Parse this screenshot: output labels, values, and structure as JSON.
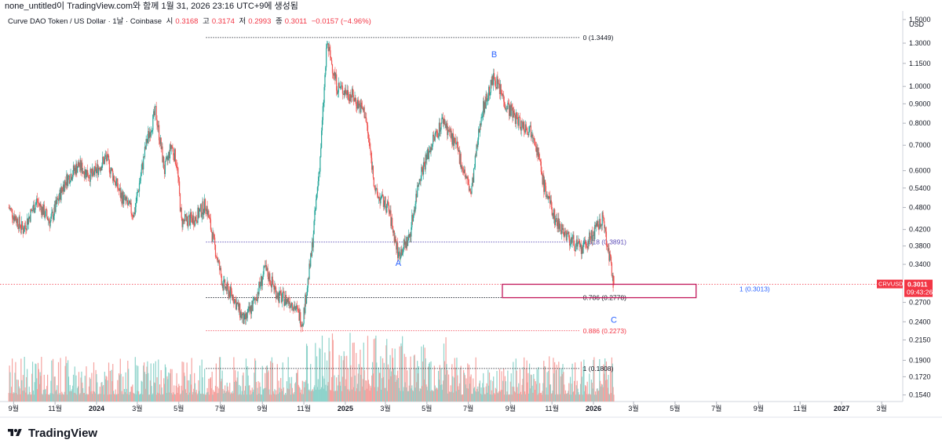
{
  "header": {
    "snapshot_text": "none_untitled이 TradingView.com와 함께 1월 31, 2026 23:16 UTC+9에 생성됨"
  },
  "legend": {
    "symbol": "Curve DAO Token / US Dollar · 1날 · Coinbase",
    "open_label": "시",
    "open_value": "0.3168",
    "high_label": "고",
    "high_value": "0.3174",
    "low_label": "저",
    "low_value": "0.2993",
    "close_label": "종",
    "close_value": "0.3011",
    "change": "−0.0157 (−4.96%)"
  },
  "footer": {
    "brand": "TradingView"
  },
  "colors": {
    "up": "#26a69a",
    "down": "#ef5350",
    "vol_up": "#8fd3cb",
    "vol_down": "#f5a3a0",
    "fib_top": "#131722",
    "fib_618": "#5b4bb7",
    "fib_1": "#2962ff",
    "fib_886": "#f23645",
    "price_tag": "#f23645",
    "box": "#c2185b",
    "wave_label": "#2962ff"
  },
  "chart_data": {
    "type": "candlestick",
    "symbol": "CRVUSD",
    "currency": "USD",
    "scale": "log",
    "ylim": [
      0.148,
      1.58
    ],
    "y_ticks": [
      "1.5000",
      "1.3000",
      "1.1500",
      "1.0000",
      "0.9000",
      "0.8000",
      "0.7000",
      "0.6000",
      "0.5400",
      "0.4800",
      "0.4200",
      "0.3800",
      "0.3400",
      "0.2700",
      "0.2400",
      "0.2150",
      "0.1900",
      "0.1720",
      "0.1540"
    ],
    "x_ticks": [
      {
        "label": "9월",
        "date": "2023-09-01"
      },
      {
        "label": "11월",
        "date": "2023-11-01"
      },
      {
        "label": "2024",
        "date": "2024-01-01",
        "bold": true
      },
      {
        "label": "3월",
        "date": "2024-03-01"
      },
      {
        "label": "5월",
        "date": "2024-05-01"
      },
      {
        "label": "7월",
        "date": "2024-07-01"
      },
      {
        "label": "9월",
        "date": "2024-09-01"
      },
      {
        "label": "11월",
        "date": "2024-11-01"
      },
      {
        "label": "2025",
        "date": "2025-01-01",
        "bold": true
      },
      {
        "label": "3월",
        "date": "2025-03-01"
      },
      {
        "label": "5월",
        "date": "2025-05-01"
      },
      {
        "label": "7월",
        "date": "2025-07-01"
      },
      {
        "label": "9월",
        "date": "2025-09-01"
      },
      {
        "label": "11월",
        "date": "2025-11-01"
      },
      {
        "label": "2026",
        "date": "2026-01-01",
        "bold": true
      },
      {
        "label": "3월",
        "date": "2026-03-01"
      },
      {
        "label": "5월",
        "date": "2026-05-01"
      },
      {
        "label": "7월",
        "date": "2026-07-01"
      },
      {
        "label": "9월",
        "date": "2026-09-01"
      },
      {
        "label": "11월",
        "date": "2026-11-01"
      },
      {
        "label": "2027",
        "date": "2027-01-01",
        "bold": true
      },
      {
        "label": "3월",
        "date": "2027-03-01"
      }
    ],
    "price_path": [
      [
        "2023-08-25",
        0.48
      ],
      [
        "2023-09-15",
        0.42
      ],
      [
        "2023-10-05",
        0.5
      ],
      [
        "2023-10-25",
        0.44
      ],
      [
        "2023-11-15",
        0.56
      ],
      [
        "2023-12-05",
        0.62
      ],
      [
        "2023-12-25",
        0.58
      ],
      [
        "2024-01-15",
        0.65
      ],
      [
        "2024-02-05",
        0.52
      ],
      [
        "2024-02-25",
        0.46
      ],
      [
        "2024-03-15",
        0.72
      ],
      [
        "2024-03-28",
        0.86
      ],
      [
        "2024-04-10",
        0.6
      ],
      [
        "2024-04-20",
        0.7
      ],
      [
        "2024-04-28",
        0.63
      ],
      [
        "2024-05-05",
        0.44
      ],
      [
        "2024-05-25",
        0.45
      ],
      [
        "2024-06-10",
        0.49
      ],
      [
        "2024-06-20",
        0.4
      ],
      [
        "2024-07-05",
        0.3
      ],
      [
        "2024-07-20",
        0.28
      ],
      [
        "2024-08-05",
        0.24
      ],
      [
        "2024-08-20",
        0.27
      ],
      [
        "2024-09-05",
        0.33
      ],
      [
        "2024-09-25",
        0.28
      ],
      [
        "2024-10-15",
        0.27
      ],
      [
        "2024-10-30",
        0.24
      ],
      [
        "2024-11-12",
        0.36
      ],
      [
        "2024-11-25",
        0.65
      ],
      [
        "2024-12-05",
        1.3
      ],
      [
        "2024-12-20",
        1.0
      ],
      [
        "2025-01-10",
        0.95
      ],
      [
        "2025-01-30",
        0.85
      ],
      [
        "2025-02-15",
        0.52
      ],
      [
        "2025-03-05",
        0.48
      ],
      [
        "2025-03-20",
        0.36
      ],
      [
        "2025-04-05",
        0.4
      ],
      [
        "2025-04-20",
        0.58
      ],
      [
        "2025-05-10",
        0.72
      ],
      [
        "2025-05-25",
        0.82
      ],
      [
        "2025-06-15",
        0.68
      ],
      [
        "2025-07-05",
        0.52
      ],
      [
        "2025-07-20",
        0.85
      ],
      [
        "2025-08-08",
        1.06
      ],
      [
        "2025-08-25",
        0.9
      ],
      [
        "2025-09-15",
        0.8
      ],
      [
        "2025-10-05",
        0.76
      ],
      [
        "2025-10-20",
        0.55
      ],
      [
        "2025-11-05",
        0.45
      ],
      [
        "2025-11-25",
        0.4
      ],
      [
        "2025-12-15",
        0.37
      ],
      [
        "2026-01-05",
        0.42
      ],
      [
        "2026-01-15",
        0.45
      ],
      [
        "2026-01-31",
        0.3011
      ]
    ],
    "last_price": "0.3011",
    "countdown": "09:43:26",
    "fibonacci": [
      {
        "level": "0",
        "price": 1.3449,
        "label": "0 (1.3449)"
      },
      {
        "level": "0.618",
        "price": 0.3891,
        "label": "0.618 (0.3891)"
      },
      {
        "level": "0.786",
        "price": 0.2778,
        "label": "0.786 (0.2778)"
      },
      {
        "level": "0.886",
        "price": 0.2273,
        "label": "0.886 (0.2273)"
      },
      {
        "level": "1",
        "price": 0.1808,
        "label": "1 (0.1808)"
      },
      {
        "level": "1_ext",
        "price": 0.3013,
        "label": "1 (0.3013)"
      }
    ],
    "waves": [
      {
        "label": "A",
        "date": "2025-03-20",
        "price": 0.36,
        "pos": "below"
      },
      {
        "label": "B",
        "date": "2025-08-08",
        "price": 1.16,
        "pos": "above"
      },
      {
        "label": "C",
        "date": "2026-01-31",
        "price": 0.255,
        "pos": "below"
      }
    ],
    "target_box": {
      "date_from": "2025-08-20",
      "date_to": "2026-06-01",
      "price_top": 0.3013,
      "price_bottom": 0.2778
    }
  }
}
